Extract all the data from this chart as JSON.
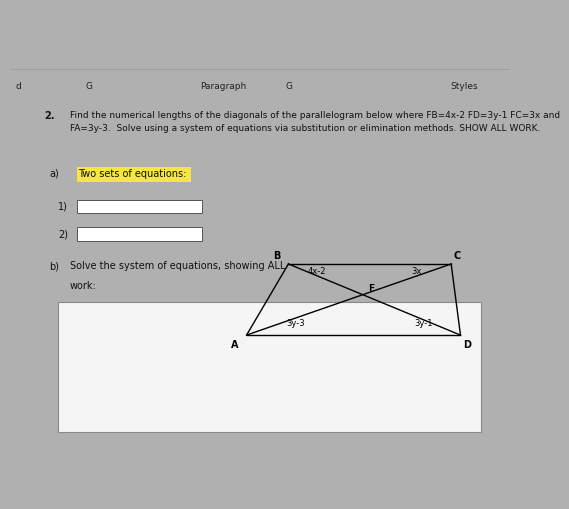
{
  "bg_top_black": "#111111",
  "bg_color": "#b0b0b0",
  "page_bg": "#e8e8e8",
  "toolbar_bg": "#c0c0c0",
  "question_number": "2.",
  "question_text": "Find the numerical lengths of the diagonals of the parallelogram below where FB=4x-2 FD=3y-1 FC=3x and\nFA=3y-3.  Solve using a system of equations via substitution or elimination methods. SHOW ALL WORK.",
  "part_a_label": "a)",
  "part_a_text": "Two sets of equations:",
  "box1_label": "1)",
  "box2_label": "2)",
  "part_b_label": "b)",
  "part_b_text1": "Solve the system of equations, showing ALL",
  "part_b_text2": "work:",
  "highlight_color": "#f5e642",
  "text_color": "#111111",
  "box_color": "#ffffff",
  "box_border": "#555555",
  "answer_box_bg": "#f5f5f5",
  "answer_box_border": "#888888",
  "para_B": [
    0.545,
    0.595
  ],
  "para_C": [
    0.895,
    0.595
  ],
  "para_A": [
    0.455,
    0.415
  ],
  "para_D": [
    0.915,
    0.415
  ],
  "toolbar_items": [
    [
      0.01,
      "d"
    ],
    [
      0.15,
      "G"
    ],
    [
      0.38,
      "Paragraph"
    ],
    [
      0.55,
      "G"
    ],
    [
      0.88,
      "Styles"
    ]
  ]
}
